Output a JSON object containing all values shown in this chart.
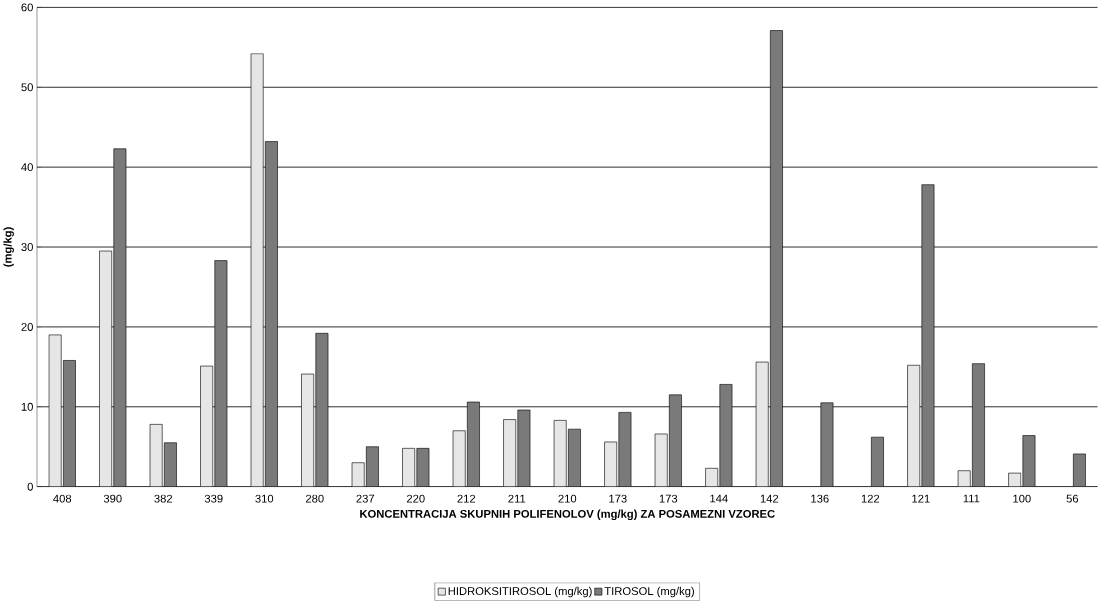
{
  "chart_data": {
    "type": "bar",
    "xlabel": "KONCENTRACIJA SKUPNIH POLIFENOLOV (mg/kg) ZA POSAMEZNI VZOREC",
    "ylabel": "(mg/kg)",
    "categories": [
      "408",
      "390",
      "382",
      "339",
      "310",
      "280",
      "237",
      "220",
      "212",
      "211",
      "210",
      "173",
      "173",
      "144",
      "142",
      "136",
      "122",
      "121",
      "111",
      "100",
      "56"
    ],
    "series": [
      {
        "name": "HIDROKSITIROSOL (mg/kg)",
        "color": "#e6e6e6",
        "values": [
          19,
          29.5,
          7.8,
          15.1,
          54.2,
          14.1,
          3,
          4.8,
          7,
          8.4,
          8.3,
          5.6,
          6.6,
          2.3,
          15.6,
          null,
          null,
          15.2,
          2,
          1.7,
          null
        ]
      },
      {
        "name": "TIROSOL (mg/kg)",
        "color": "#7a7a7a",
        "values": [
          15.8,
          42.3,
          5.5,
          28.3,
          43.2,
          19.2,
          5,
          4.8,
          10.6,
          9.6,
          7.2,
          9.3,
          11.5,
          12.8,
          57.1,
          10.5,
          6.2,
          37.8,
          15.4,
          6.4,
          4.1
        ]
      }
    ],
    "ylim": [
      0,
      60
    ],
    "yticks": [
      0,
      10,
      20,
      30,
      40,
      50,
      60
    ],
    "grid": "y",
    "legend": "bottom"
  }
}
